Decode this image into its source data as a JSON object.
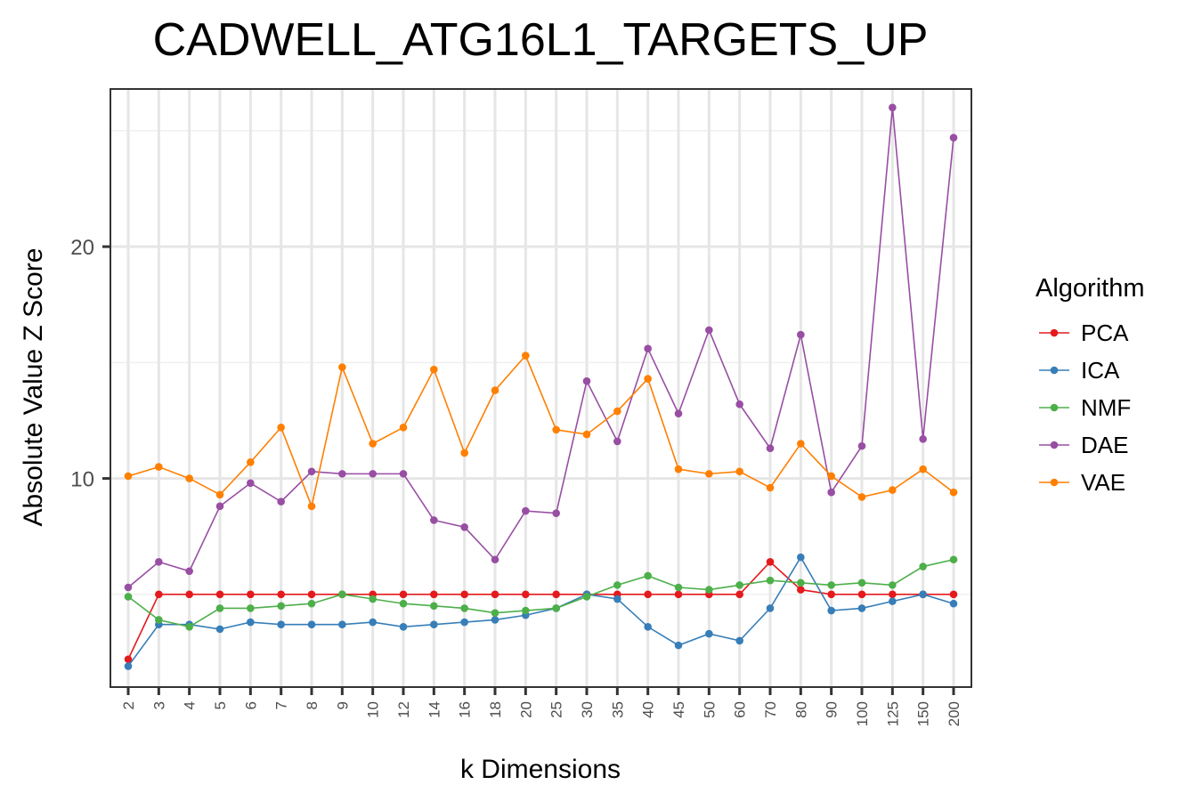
{
  "chart_data": {
    "type": "line",
    "title": "CADWELL_ATG16L1_TARGETS_UP",
    "xlabel": "k Dimensions",
    "ylabel": "Absolute Value Z Score",
    "categories": [
      "2",
      "3",
      "4",
      "5",
      "6",
      "7",
      "8",
      "9",
      "10",
      "12",
      "14",
      "16",
      "18",
      "20",
      "25",
      "30",
      "35",
      "40",
      "45",
      "50",
      "60",
      "70",
      "80",
      "90",
      "100",
      "125",
      "150",
      "200"
    ],
    "ylim": [
      1.0,
      26.8
    ],
    "yticks": [
      10,
      20
    ],
    "ytick_labels": [
      "10",
      "20"
    ],
    "grid": true,
    "legend_title": "Algorithm",
    "legend_position": "right",
    "series": [
      {
        "name": "PCA",
        "color": "#e41a1c",
        "values": [
          2.2,
          5.0,
          5.0,
          5.0,
          5.0,
          5.0,
          5.0,
          5.0,
          5.0,
          5.0,
          5.0,
          5.0,
          5.0,
          5.0,
          5.0,
          5.0,
          5.0,
          5.0,
          5.0,
          5.0,
          5.0,
          6.4,
          5.2,
          5.0,
          5.0,
          5.0,
          5.0,
          5.0
        ]
      },
      {
        "name": "ICA",
        "color": "#377eb8",
        "values": [
          1.9,
          3.7,
          3.7,
          3.5,
          3.8,
          3.7,
          3.7,
          3.7,
          3.8,
          3.6,
          3.7,
          3.8,
          3.9,
          4.1,
          4.4,
          5.0,
          4.8,
          3.6,
          2.8,
          3.3,
          3.0,
          4.4,
          6.6,
          4.3,
          4.4,
          4.7,
          5.0,
          4.6
        ]
      },
      {
        "name": "NMF",
        "color": "#4daf4a",
        "values": [
          4.9,
          3.9,
          3.6,
          4.4,
          4.4,
          4.5,
          4.6,
          5.0,
          4.8,
          4.6,
          4.5,
          4.4,
          4.2,
          4.3,
          4.4,
          4.9,
          5.4,
          5.8,
          5.3,
          5.2,
          5.4,
          5.6,
          5.5,
          5.4,
          5.5,
          5.4,
          6.2,
          6.5
        ]
      },
      {
        "name": "DAE",
        "color": "#984ea3",
        "values": [
          5.3,
          6.4,
          6.0,
          8.8,
          9.8,
          9.0,
          10.3,
          10.2,
          10.2,
          10.2,
          8.2,
          7.9,
          6.5,
          8.6,
          8.5,
          14.2,
          11.6,
          15.6,
          12.8,
          16.4,
          13.2,
          11.3,
          16.2,
          9.4,
          11.4,
          26.0,
          11.7,
          24.7
        ]
      },
      {
        "name": "VAE",
        "color": "#ff7f00",
        "values": [
          10.1,
          10.5,
          10.0,
          9.3,
          10.7,
          12.2,
          8.8,
          14.8,
          11.5,
          12.2,
          14.7,
          11.1,
          13.8,
          15.3,
          12.1,
          11.9,
          12.9,
          14.3,
          10.4,
          10.2,
          10.3,
          9.6,
          11.5,
          10.1,
          9.2,
          9.5,
          10.4,
          9.4
        ]
      }
    ]
  }
}
